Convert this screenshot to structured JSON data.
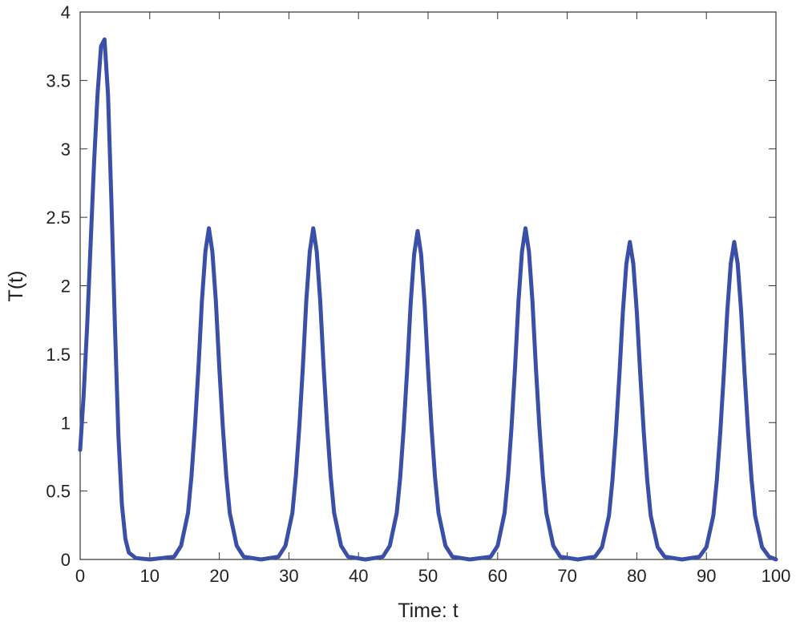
{
  "chart_data": {
    "type": "line",
    "xlabel": "Time: t",
    "ylabel": "T(t)",
    "xlim": [
      0,
      100
    ],
    "ylim": [
      0,
      4
    ],
    "xticks": [
      0,
      10,
      20,
      30,
      40,
      50,
      60,
      70,
      80,
      90,
      100
    ],
    "yticks": [
      0,
      0.5,
      1,
      1.5,
      2,
      2.5,
      3,
      3.5,
      4
    ],
    "x": [
      0,
      0.5,
      1,
      1.5,
      2,
      2.5,
      3,
      3.5,
      4,
      4.5,
      5,
      5.5,
      6,
      6.5,
      7,
      8,
      10,
      13.5,
      14.5,
      15.5,
      16,
      16.5,
      17,
      17.5,
      18,
      18.5,
      19,
      19.5,
      20,
      20.5,
      21,
      21.5,
      22.5,
      23.5,
      26,
      28.5,
      29.5,
      30.5,
      31,
      31.5,
      32,
      32.5,
      33,
      33.5,
      34,
      34.5,
      35,
      35.5,
      36,
      36.5,
      37.5,
      38.5,
      41,
      43.5,
      44.5,
      45.5,
      46,
      46.5,
      47,
      47.5,
      48,
      48.5,
      49,
      49.5,
      50,
      50.5,
      51,
      51.5,
      52.5,
      53.5,
      56,
      59,
      60,
      61,
      61.5,
      62,
      62.5,
      63,
      63.5,
      64,
      64.5,
      65,
      65.5,
      66,
      66.5,
      67,
      68,
      69,
      71.5,
      74,
      75,
      76,
      76.5,
      77,
      77.5,
      78,
      78.5,
      79,
      79.5,
      80,
      80.5,
      81,
      81.5,
      82,
      83,
      84,
      86.5,
      89,
      90,
      91,
      91.5,
      92,
      92.5,
      93,
      93.5,
      94,
      94.5,
      95,
      95.5,
      96,
      96.5,
      97,
      98,
      99,
      100
    ],
    "series": [
      {
        "color": "#3a4fa8",
        "values": [
          0.8,
          1.2,
          1.7,
          2.3,
          2.9,
          3.4,
          3.75,
          3.8,
          3.4,
          2.6,
          1.7,
          0.9,
          0.4,
          0.15,
          0.05,
          0.01,
          0,
          0.02,
          0.1,
          0.34,
          0.61,
          0.97,
          1.4,
          1.89,
          2.25,
          2.42,
          2.25,
          1.89,
          1.4,
          0.97,
          0.61,
          0.34,
          0.1,
          0.02,
          0,
          0.02,
          0.1,
          0.34,
          0.61,
          0.97,
          1.4,
          1.89,
          2.25,
          2.42,
          2.25,
          1.89,
          1.4,
          0.97,
          0.61,
          0.34,
          0.1,
          0.02,
          0,
          0.02,
          0.1,
          0.34,
          0.6,
          0.96,
          1.39,
          1.87,
          2.23,
          2.4,
          2.23,
          1.87,
          1.39,
          0.96,
          0.6,
          0.34,
          0.1,
          0.02,
          0,
          0.02,
          0.1,
          0.34,
          0.61,
          0.97,
          1.4,
          1.89,
          2.25,
          2.42,
          2.25,
          1.89,
          1.4,
          0.97,
          0.61,
          0.34,
          0.1,
          0.02,
          0,
          0.02,
          0.09,
          0.32,
          0.58,
          0.93,
          1.35,
          1.81,
          2.16,
          2.32,
          2.16,
          1.81,
          1.35,
          0.93,
          0.58,
          0.32,
          0.09,
          0.02,
          0,
          0.02,
          0.09,
          0.32,
          0.58,
          0.93,
          1.35,
          1.81,
          2.16,
          2.32,
          2.16,
          1.81,
          1.35,
          0.93,
          0.58,
          0.32,
          0.09,
          0.02,
          0
        ]
      }
    ]
  }
}
